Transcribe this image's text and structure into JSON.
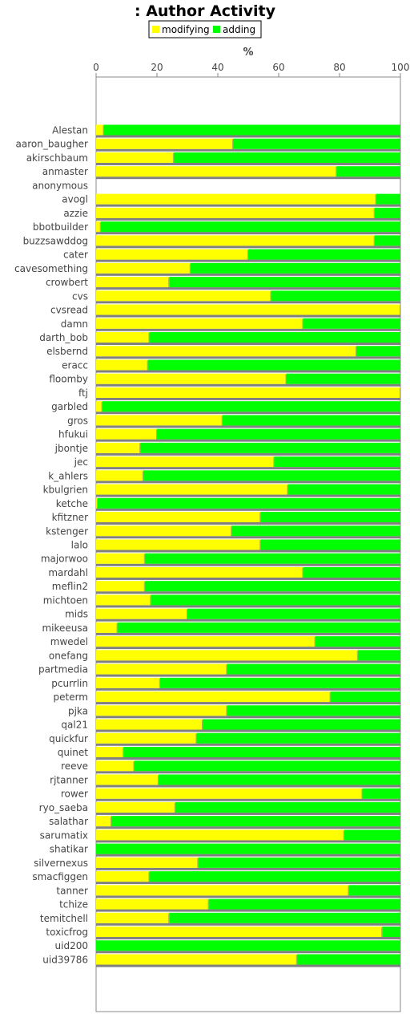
{
  "chart_data": {
    "type": "bar",
    "orientation": "horizontal",
    "stacked": true,
    "title": ": Author Activity",
    "xlabel": "%",
    "xlim": [
      0,
      100
    ],
    "x_ticks": [
      "0",
      "20",
      "40",
      "60",
      "80",
      "100"
    ],
    "legend": {
      "placement": "top-center",
      "entries": [
        "modifying",
        "adding"
      ]
    },
    "colors": {
      "modifying": "#ffff00",
      "adding": "#00ff00",
      "shadow": "#808080"
    },
    "categories": [
      "Alestan",
      "aaron_baugher",
      "akirschbaum",
      "anmaster",
      "anonymous",
      "avogl",
      "azzie",
      "bbotbuilder",
      "buzzsawddog",
      "cater",
      "cavesomething",
      "crowbert",
      "cvs",
      "cvsread",
      "damn",
      "darth_bob",
      "elsbernd",
      "eracc",
      "floomby",
      "ftj",
      "garbled",
      "gros",
      "hfukui",
      "jbontje",
      "jec",
      "k_ahlers",
      "kbulgrien",
      "ketche",
      "kfitzner",
      "kstenger",
      "lalo",
      "majorwoo",
      "mardahl",
      "meflin2",
      "michtoen",
      "mids",
      "mikeeusa",
      "mwedel",
      "onefang",
      "partmedia",
      "pcurrlin",
      "peterm",
      "pjka",
      "qal21",
      "quickfur",
      "quinet",
      "reeve",
      "rjtanner",
      "rower",
      "ryo_saeba",
      "salathar",
      "sarumatix",
      "shatikar",
      "silvernexus",
      "smacfiggen",
      "tanner",
      "tchize",
      "temitchell",
      "toxicfrog",
      "uid200",
      "uid39786"
    ],
    "series": [
      {
        "name": "modifying",
        "values": [
          2.5,
          45,
          25.5,
          79,
          null,
          92,
          91.5,
          1.5,
          91.5,
          50,
          31,
          24,
          57.5,
          100,
          68,
          17.5,
          85.5,
          17,
          62.5,
          100,
          2,
          41.5,
          20,
          14.5,
          58.5,
          15.5,
          63,
          0.5,
          54,
          44.5,
          54,
          16,
          68,
          16,
          18,
          30,
          7,
          72,
          86,
          43,
          21,
          77,
          43,
          35,
          33,
          9,
          12.5,
          20.5,
          87.5,
          26,
          5,
          81.5,
          0,
          33.5,
          17.5,
          83,
          37,
          24,
          94,
          0,
          66
        ]
      },
      {
        "name": "adding",
        "values": [
          97.5,
          55,
          74.5,
          21,
          null,
          8,
          8.5,
          98.5,
          8.5,
          50,
          69,
          76,
          42.5,
          0,
          32,
          82.5,
          14.5,
          83,
          37.5,
          0,
          98,
          58.5,
          80,
          85.5,
          41.5,
          84.5,
          37,
          99.5,
          46,
          55.5,
          46,
          84,
          32,
          84,
          82,
          70,
          93,
          28,
          14,
          57,
          79,
          23,
          57,
          65,
          67,
          91,
          87.5,
          79.5,
          12.5,
          74,
          95,
          18.5,
          100,
          66.5,
          82.5,
          17,
          63,
          76,
          6,
          100,
          34
        ]
      }
    ]
  }
}
